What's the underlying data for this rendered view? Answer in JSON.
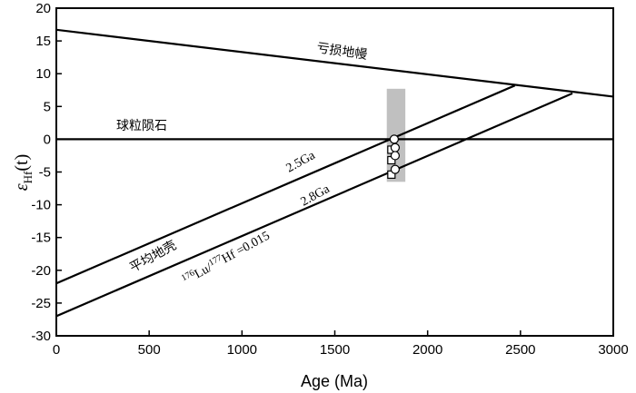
{
  "chart_data": {
    "type": "line",
    "title": "",
    "xlabel": "Age (Ma)",
    "ylabel_symbol": "ε",
    "ylabel_sub": "Hf",
    "ylabel_arg": "(t)",
    "xlim": [
      0,
      3000
    ],
    "ylim": [
      -30,
      20
    ],
    "xticks": [
      0,
      500,
      1000,
      1500,
      2000,
      2500,
      3000
    ],
    "yticks": [
      -30,
      -25,
      -20,
      -15,
      -10,
      -5,
      0,
      5,
      10,
      15,
      20
    ],
    "grid": false,
    "lines": [
      {
        "label": "亏损地幔",
        "x": [
          0,
          3000
        ],
        "y": [
          16.7,
          6.5
        ]
      },
      {
        "label": "球粒陨石",
        "x": [
          0,
          3000
        ],
        "y": [
          0,
          0
        ]
      },
      {
        "label": "2.5Ga",
        "x": [
          0,
          2470
        ],
        "y": [
          -22.0,
          8.2
        ]
      },
      {
        "label": "2.8Ga",
        "x": [
          0,
          2780
        ],
        "y": [
          -27.0,
          7.0
        ]
      }
    ],
    "annotations": {
      "crust_label": "平均地壳",
      "lu_hf_ratio": {
        "sup1": "176",
        "el1": "Lu/",
        "sup2": "177",
        "el2": "Hf",
        "rest": " =0.015"
      }
    },
    "shaded_band": {
      "x": [
        1780,
        1880
      ],
      "y": [
        -6.5,
        7.7
      ],
      "color": "#c0c0c0"
    },
    "samples": {
      "circles": [
        {
          "x": 1820,
          "y": 0
        },
        {
          "x": 1825,
          "y": -1.3
        },
        {
          "x": 1825,
          "y": -2.5
        },
        {
          "x": 1825,
          "y": -4.6
        }
      ],
      "squares": [
        {
          "x": 1805,
          "y": -1.6
        },
        {
          "x": 1805,
          "y": -3.2
        },
        {
          "x": 1805,
          "y": -5.4
        }
      ]
    }
  }
}
